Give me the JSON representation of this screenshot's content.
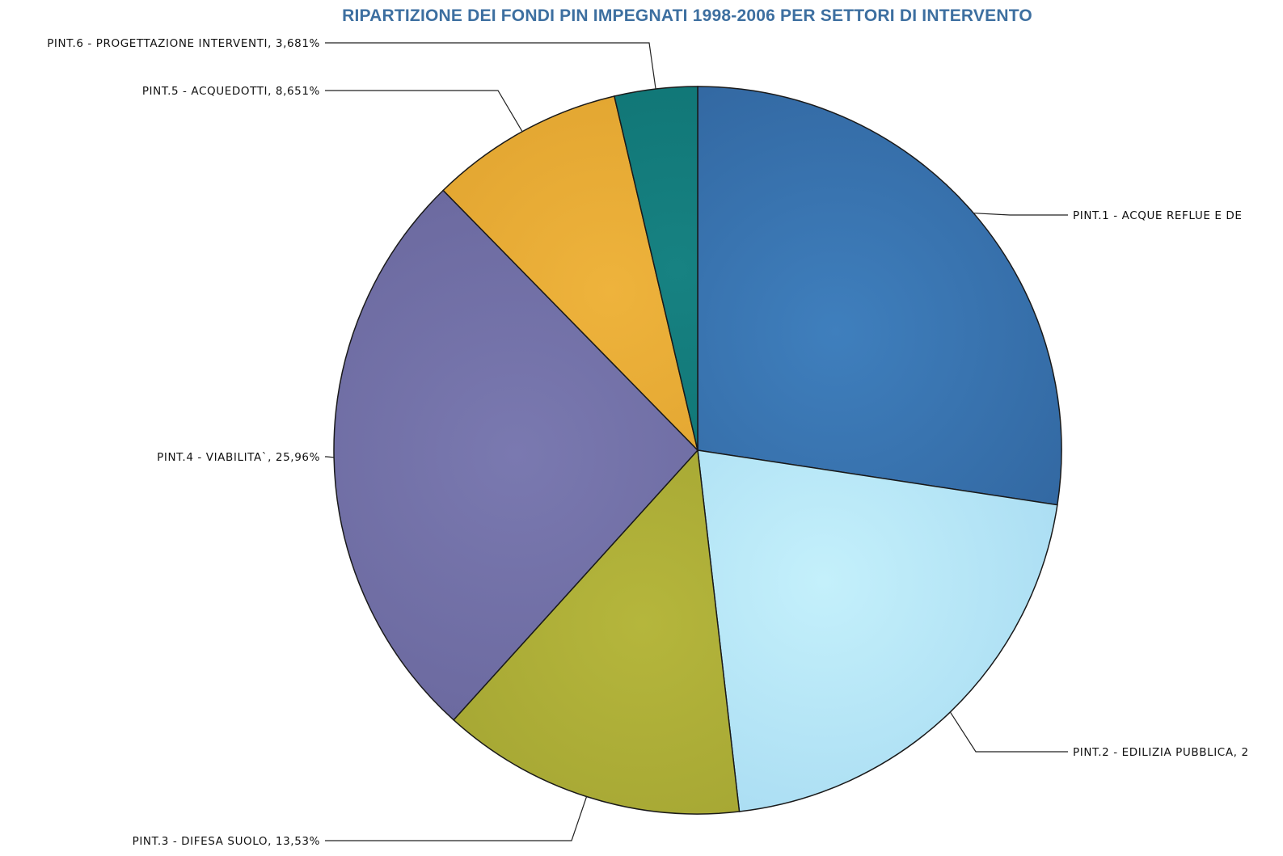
{
  "chart_data": {
    "type": "pie",
    "title": "RIPARTIZIONE DEI FONDI PIN IMPEGNATI 1998-2006 PER SETTORI DI INTERVENTO",
    "start_angle_deg": 0,
    "direction": "clockwise",
    "slices": [
      {
        "label": "PINT.1 - ACQUE REFLUE E DE",
        "value": 27.4,
        "color": "#3369a3",
        "highlight": "#3f7fbd"
      },
      {
        "label": "PINT.2 - EDILIZIA PUBBLICA, 2",
        "value": 20.77,
        "color": "#a9dcf2",
        "highlight": "#c4f0fb"
      },
      {
        "label": "PINT.3 - DIFESA SUOLO, 13,53%",
        "value": 13.53,
        "color": "#a3a432",
        "highlight": "#b5b63c"
      },
      {
        "label": "PINT.4 - VIABILITA`, 25,96%",
        "value": 25.96,
        "color": "#6c6aa0",
        "highlight": "#7a79b0"
      },
      {
        "label": "PINT.5 - ACQUEDOTTI, 8,651%",
        "value": 8.651,
        "color": "#dfa22e",
        "highlight": "#eeb33c"
      },
      {
        "label": "PINT.6 - PROGETTAZIONE INTERVENTI, 3,681%",
        "value": 3.681,
        "color": "#0e7272",
        "highlight": "#178282"
      }
    ]
  }
}
